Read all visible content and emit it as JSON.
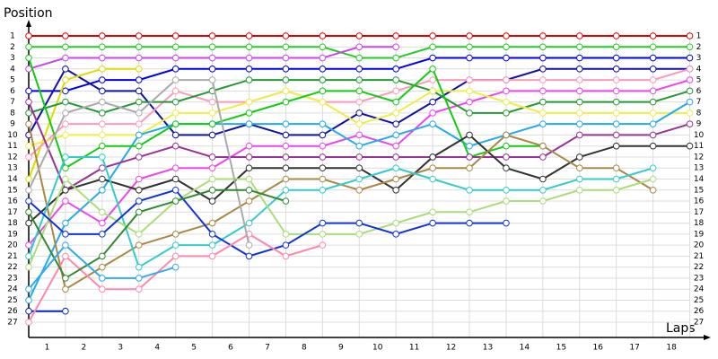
{
  "chart_data": {
    "type": "line",
    "y_label": "Position",
    "x_label": "Laps",
    "x": [
      0,
      1,
      2,
      3,
      4,
      5,
      6,
      7,
      8,
      9,
      10,
      11,
      12,
      13,
      14,
      15,
      16,
      17,
      18
    ],
    "xlim": [
      0,
      18.5
    ],
    "xticks": [
      {
        "value": 1,
        "label": "1"
      },
      {
        "value": 2,
        "label": "2"
      },
      {
        "value": 3,
        "label": "3"
      },
      {
        "value": 4,
        "label": "4"
      },
      {
        "value": 5,
        "label": "5"
      },
      {
        "value": 6,
        "label": "6"
      },
      {
        "value": 7,
        "label": "7"
      },
      {
        "value": 8,
        "label": "8"
      },
      {
        "value": 9,
        "label": "9"
      },
      {
        "value": 10,
        "label": "10"
      },
      {
        "value": 11,
        "label": "11"
      },
      {
        "value": 12,
        "label": "12"
      },
      {
        "value": 13,
        "label": "13"
      },
      {
        "value": 14,
        "label": "14"
      },
      {
        "value": 15,
        "label": "15"
      },
      {
        "value": 16,
        "label": "16"
      },
      {
        "value": 17,
        "label": "17"
      },
      {
        "value": 18,
        "label": "18"
      }
    ],
    "ylim": [
      1,
      27
    ],
    "yticks": [
      1,
      2,
      3,
      4,
      5,
      6,
      7,
      8,
      9,
      10,
      11,
      12,
      13,
      14,
      15,
      16,
      17,
      18,
      19,
      20,
      21,
      22,
      23,
      24,
      25,
      26,
      27
    ],
    "y_inverted": true,
    "grid": true,
    "series": [
      {
        "color": "#e00000",
        "values": [
          1,
          1,
          1,
          1,
          1,
          1,
          1,
          1,
          1,
          1,
          1,
          1,
          1,
          1,
          1,
          1,
          1,
          1,
          1
        ]
      },
      {
        "color": "#22cc22",
        "values": [
          2,
          2,
          2,
          2,
          2,
          2,
          2,
          2,
          2,
          3,
          3,
          2,
          2,
          2,
          2,
          2,
          2,
          2,
          2
        ]
      },
      {
        "color": "#cc44ee",
        "values": [
          4,
          3,
          3,
          3,
          3,
          3,
          3,
          3,
          3,
          2,
          2,
          null,
          null,
          null,
          null,
          null,
          null,
          null,
          null
        ]
      },
      {
        "color": "#0000ee",
        "values": [
          6,
          6,
          5,
          5,
          4,
          4,
          4,
          4,
          4,
          4,
          4,
          3,
          3,
          3,
          3,
          3,
          3,
          3,
          3
        ]
      },
      {
        "color": "#1010aa",
        "values": [
          10,
          4,
          6,
          6,
          10,
          10,
          9,
          10,
          10,
          8,
          9,
          7,
          5,
          5,
          4,
          4,
          4,
          4,
          4
        ]
      },
      {
        "color": "#dddd00",
        "values": [
          14,
          5,
          4,
          4,
          null,
          null,
          null,
          null,
          null,
          null,
          null,
          null,
          null,
          null,
          null,
          null,
          null,
          null,
          null
        ]
      },
      {
        "color": "#ff99bb",
        "values": [
          12,
          9,
          9,
          9,
          6,
          7,
          7,
          6,
          7,
          7,
          6,
          5,
          5,
          5,
          5,
          5,
          5,
          5,
          4
        ]
      },
      {
        "color": "#ee44ee",
        "values": [
          20,
          16,
          18,
          14,
          13,
          13,
          11,
          11,
          11,
          10,
          11,
          8,
          7,
          6,
          6,
          6,
          6,
          6,
          5
        ]
      },
      {
        "color": "#229933",
        "values": [
          8,
          7,
          8,
          7,
          7,
          6,
          5,
          5,
          5,
          5,
          5,
          6,
          8,
          8,
          7,
          7,
          7,
          7,
          6
        ]
      },
      {
        "color": "#eeee44",
        "values": [
          11,
          10,
          10,
          10,
          8,
          8,
          7,
          6,
          7,
          9,
          8,
          6,
          6,
          7,
          8,
          8,
          8,
          8,
          8
        ]
      },
      {
        "color": "#22aaee",
        "values": [
          25,
          18,
          15,
          10,
          9,
          9,
          9,
          9,
          9,
          11,
          10,
          9,
          11,
          10,
          9,
          9,
          9,
          9,
          7
        ]
      },
      {
        "color": "#11cc11",
        "values": [
          3,
          13,
          11,
          11,
          9,
          9,
          8,
          7,
          6,
          6,
          7,
          4,
          12,
          11,
          11,
          null,
          null,
          null,
          null
        ]
      },
      {
        "color": "#993399",
        "values": [
          7,
          15,
          13,
          12,
          11,
          12,
          12,
          12,
          12,
          12,
          12,
          12,
          12,
          12,
          12,
          10,
          10,
          10,
          9
        ]
      },
      {
        "color": "#333333",
        "values": [
          18,
          15,
          14,
          15,
          14,
          16,
          13,
          13,
          13,
          13,
          15,
          12,
          10,
          13,
          14,
          12,
          11,
          11,
          11
        ]
      },
      {
        "color": "#aa8844",
        "values": [
          9,
          24,
          22,
          20,
          19,
          18,
          16,
          14,
          14,
          15,
          14,
          13,
          13,
          10,
          11,
          13,
          13,
          15,
          null
        ]
      },
      {
        "color": "#33cccc",
        "values": [
          21,
          12,
          12,
          22,
          20,
          20,
          18,
          15,
          15,
          14,
          13,
          14,
          15,
          15,
          15,
          14,
          14,
          13,
          null
        ]
      },
      {
        "color": "#aadd77",
        "values": [
          22,
          14,
          17,
          19,
          16,
          14,
          14,
          19,
          19,
          19,
          18,
          17,
          17,
          16,
          16,
          15,
          15,
          14,
          null
        ]
      },
      {
        "color": "#0022cc",
        "values": [
          26,
          26,
          null,
          null,
          null,
          null,
          null,
          null,
          null,
          null,
          null,
          null,
          null,
          null,
          null,
          null,
          null,
          null,
          null
        ]
      },
      {
        "color": "#1133dd",
        "values": [
          16,
          19,
          19,
          16,
          15,
          19,
          21,
          20,
          18,
          18,
          19,
          18,
          18,
          18,
          null,
          null,
          null,
          null,
          null
        ]
      },
      {
        "color": "#ff88aa",
        "values": [
          27,
          21,
          24,
          24,
          21,
          21,
          19,
          21,
          20,
          null,
          null,
          null,
          null,
          null,
          null,
          null,
          null,
          null,
          null
        ]
      },
      {
        "color": "#aaaaaa",
        "values": [
          15,
          8,
          7,
          8,
          5,
          5,
          20,
          null,
          null,
          null,
          null,
          null,
          null,
          null,
          null,
          null,
          null,
          null,
          null
        ]
      },
      {
        "color": "#338833",
        "values": [
          17,
          23,
          21,
          17,
          16,
          15,
          15,
          16,
          null,
          null,
          null,
          null,
          null,
          null,
          null,
          null,
          null,
          null,
          null
        ]
      },
      {
        "color": "#33aaee",
        "values": [
          24,
          20,
          23,
          23,
          22,
          null,
          null,
          null,
          null,
          null,
          null,
          null,
          null,
          null,
          null,
          null,
          null,
          null,
          null
        ]
      }
    ]
  }
}
